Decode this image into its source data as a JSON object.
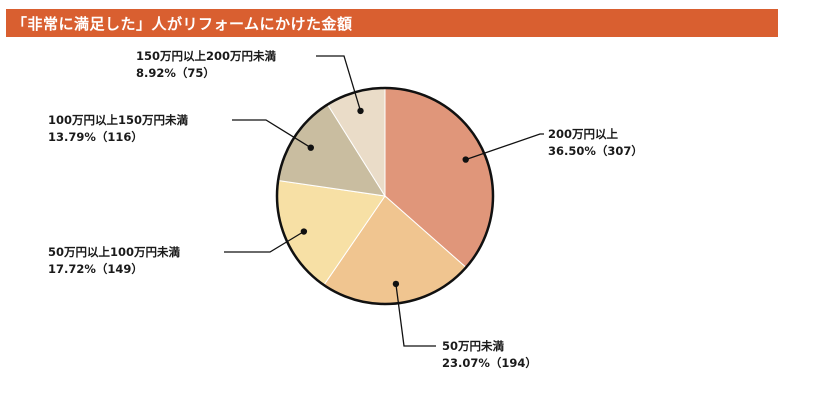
{
  "title": "「非常に満足した」人がリフォームにかけた金額",
  "chart_data": {
    "type": "pie",
    "start_angle_deg": 0,
    "direction": "clockwise",
    "slices": [
      {
        "label": "200万円以上",
        "percent": 36.5,
        "count": 307,
        "value_text": "36.50%（307）",
        "color": "#e0967a"
      },
      {
        "label": "50万円未満",
        "percent": 23.07,
        "count": 194,
        "value_text": "23.07%（194）",
        "color": "#f0c590"
      },
      {
        "label": "50万円以上100万円未満",
        "percent": 17.72,
        "count": 149,
        "value_text": "17.72%（149）",
        "color": "#f7e0a5"
      },
      {
        "label": "100万円以上150万円未満",
        "percent": 13.79,
        "count": 116,
        "value_text": "13.79%（116）",
        "color": "#c9bda0"
      },
      {
        "label": "150万円以上200万円未満",
        "percent": 8.92,
        "count": 75,
        "value_text": "8.92%（75）",
        "color": "#eadcc8"
      }
    ]
  }
}
